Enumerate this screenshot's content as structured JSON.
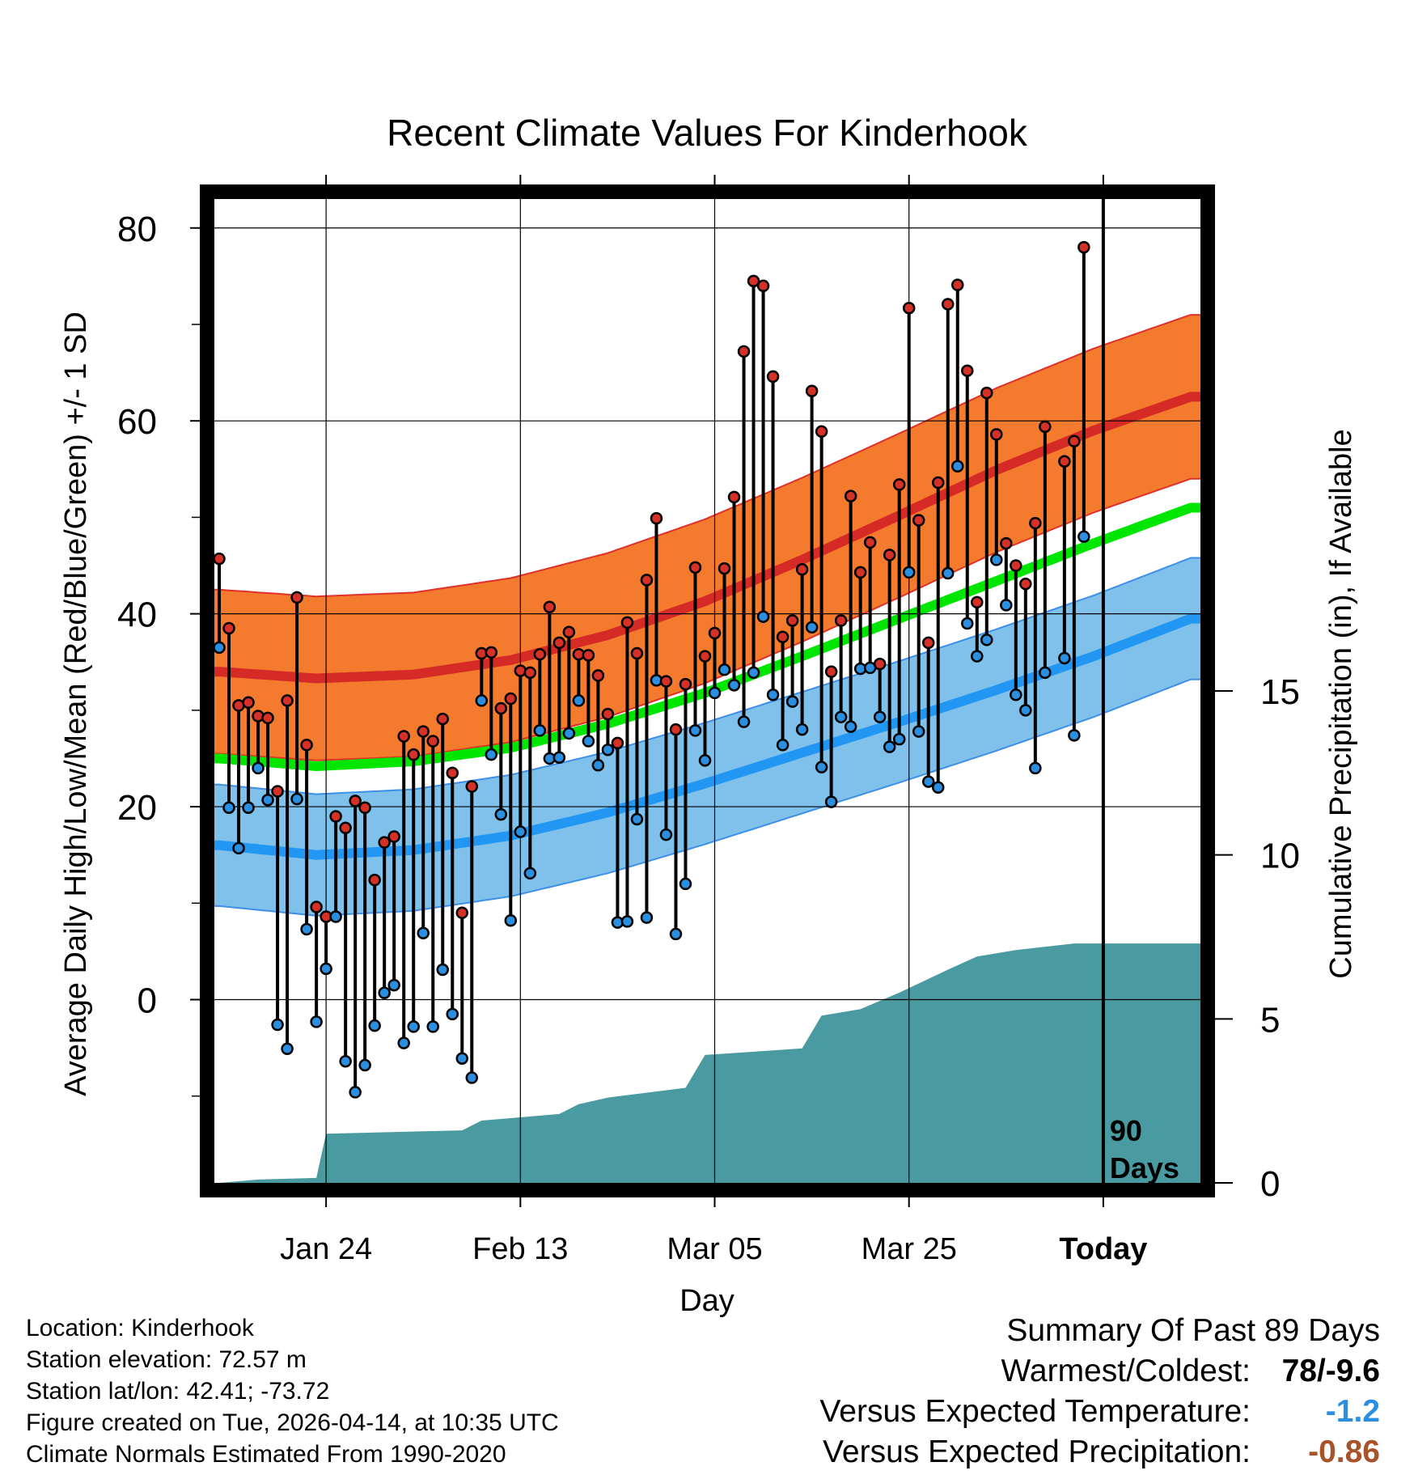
{
  "chart_data": {
    "type": "line",
    "title": "Recent Climate Values For Kinderhook",
    "xlabel": "Day",
    "ylabel_left": "Average Daily High/Low/Mean (Red/Blue/Green) +/- 1 SD",
    "ylabel_right": "Cumulative Precipitation (in), If Available",
    "xlim": [
      -0.5,
      101
    ],
    "ylim": [
      -19,
      83
    ],
    "precip_ylim": [
      0,
      30
    ],
    "x_ticks": [
      {
        "day": 11,
        "label": "Jan 24"
      },
      {
        "day": 31,
        "label": "Feb 13"
      },
      {
        "day": 51,
        "label": "Mar 05"
      },
      {
        "day": 71,
        "label": "Mar 25"
      },
      {
        "day": 91,
        "label": "Today"
      }
    ],
    "y_ticks": [
      0,
      20,
      40,
      60,
      80
    ],
    "y_minor_ticks": [
      -10,
      10,
      30,
      50,
      70
    ],
    "precip_ticks": [
      0,
      5,
      10,
      15
    ],
    "today_day": 91,
    "today_label": "90 Days",
    "normals": {
      "days": [
        0,
        10,
        20,
        30,
        40,
        50,
        60,
        70,
        80,
        90,
        100
      ],
      "high_mean": [
        34.0,
        33.3,
        33.7,
        35.2,
        37.8,
        41.3,
        45.6,
        50.2,
        54.9,
        59.0,
        62.5
      ],
      "high_sd": 8.5,
      "low_mean": [
        16.0,
        15.0,
        15.5,
        17.0,
        19.4,
        22.4,
        25.6,
        28.8,
        32.1,
        35.6,
        39.5
      ],
      "low_sd": 6.3,
      "avg_mean": [
        25.0,
        24.2,
        24.7,
        26.1,
        28.6,
        31.8,
        35.6,
        39.5,
        43.4,
        47.3,
        51.0
      ],
      "colors": {
        "high_band": "#f47a2e",
        "high_line": "#d62a27",
        "low_band": "#7fc1ea",
        "low_line": "#2196f3",
        "avg_line": "#00e600",
        "precip": "#4a9aa1"
      }
    },
    "daily": [
      {
        "day": 0,
        "high": 45.7,
        "low": 36.5
      },
      {
        "day": 1,
        "high": 38.5,
        "low": 19.9
      },
      {
        "day": 2,
        "high": 30.5,
        "low": 15.7
      },
      {
        "day": 3,
        "high": 30.8,
        "low": 19.9
      },
      {
        "day": 4,
        "high": 29.4,
        "low": 24.0
      },
      {
        "day": 5,
        "high": 29.2,
        "low": 20.7
      },
      {
        "day": 6,
        "high": 21.6,
        "low": -2.6
      },
      {
        "day": 7,
        "high": 31.0,
        "low": -5.1
      },
      {
        "day": 8,
        "high": 41.7,
        "low": 20.8
      },
      {
        "day": 9,
        "high": 26.4,
        "low": 7.3
      },
      {
        "day": 10,
        "high": 9.6,
        "low": -2.3
      },
      {
        "day": 11,
        "high": 8.6,
        "low": 3.2
      },
      {
        "day": 12,
        "high": 19.0,
        "low": 8.6
      },
      {
        "day": 13,
        "high": 17.8,
        "low": -6.4
      },
      {
        "day": 14,
        "high": 20.6,
        "low": -9.6
      },
      {
        "day": 15,
        "high": 19.9,
        "low": -6.8
      },
      {
        "day": 16,
        "high": 12.4,
        "low": -2.7
      },
      {
        "day": 17,
        "high": 16.3,
        "low": 0.7
      },
      {
        "day": 18,
        "high": 16.9,
        "low": 1.5
      },
      {
        "day": 19,
        "high": 27.3,
        "low": -4.5
      },
      {
        "day": 20,
        "high": 25.4,
        "low": -2.8
      },
      {
        "day": 21,
        "high": 27.8,
        "low": 6.9
      },
      {
        "day": 22,
        "high": 26.8,
        "low": -2.8
      },
      {
        "day": 23,
        "high": 29.1,
        "low": 3.1
      },
      {
        "day": 24,
        "high": 23.5,
        "low": -1.5
      },
      {
        "day": 25,
        "high": 9.0,
        "low": -6.1
      },
      {
        "day": 26,
        "high": 22.1,
        "low": -8.1
      },
      {
        "day": 27,
        "high": 35.9,
        "low": 31.0
      },
      {
        "day": 28,
        "high": 36.0,
        "low": 25.4
      },
      {
        "day": 29,
        "high": 30.2,
        "low": 19.2
      },
      {
        "day": 30,
        "high": 31.2,
        "low": 8.2
      },
      {
        "day": 31,
        "high": 34.1,
        "low": 17.4
      },
      {
        "day": 32,
        "high": 33.9,
        "low": 13.1
      },
      {
        "day": 33,
        "high": 35.8,
        "low": 27.9
      },
      {
        "day": 34,
        "high": 40.7,
        "low": 25.0
      },
      {
        "day": 35,
        "high": 37.0,
        "low": 25.1
      },
      {
        "day": 36,
        "high": 38.1,
        "low": 27.6
      },
      {
        "day": 37,
        "high": 35.8,
        "low": 31.0
      },
      {
        "day": 38,
        "high": 35.7,
        "low": 26.8
      },
      {
        "day": 39,
        "high": 33.6,
        "low": 24.3
      },
      {
        "day": 40,
        "high": 29.6,
        "low": 25.9
      },
      {
        "day": 41,
        "high": 26.6,
        "low": 8.0
      },
      {
        "day": 42,
        "high": 39.1,
        "low": 8.1
      },
      {
        "day": 43,
        "high": 35.9,
        "low": 18.7
      },
      {
        "day": 44,
        "high": 43.5,
        "low": 8.5
      },
      {
        "day": 45,
        "high": 49.9,
        "low": 33.1
      },
      {
        "day": 46,
        "high": 33.0,
        "low": 17.1
      },
      {
        "day": 47,
        "high": 28.0,
        "low": 6.8
      },
      {
        "day": 48,
        "high": 32.7,
        "low": 12.0
      },
      {
        "day": 49,
        "high": 44.8,
        "low": 27.9
      },
      {
        "day": 50,
        "high": 35.6,
        "low": 24.8
      },
      {
        "day": 51,
        "high": 38.0,
        "low": 31.8
      },
      {
        "day": 52,
        "high": 44.7,
        "low": 34.2
      },
      {
        "day": 53,
        "high": 52.1,
        "low": 32.6
      },
      {
        "day": 54,
        "high": 67.2,
        "low": 28.8
      },
      {
        "day": 55,
        "high": 74.5,
        "low": 33.9
      },
      {
        "day": 56,
        "high": 74.0,
        "low": 39.7
      },
      {
        "day": 57,
        "high": 64.6,
        "low": 31.6
      },
      {
        "day": 58,
        "high": 37.6,
        "low": 26.4
      },
      {
        "day": 59,
        "high": 39.3,
        "low": 30.9
      },
      {
        "day": 60,
        "high": 44.6,
        "low": 28.0
      },
      {
        "day": 61,
        "high": 63.1,
        "low": 38.6
      },
      {
        "day": 62,
        "high": 58.9,
        "low": 24.1
      },
      {
        "day": 63,
        "high": 34.0,
        "low": 20.5
      },
      {
        "day": 64,
        "high": 39.3,
        "low": 29.3
      },
      {
        "day": 65,
        "high": 52.2,
        "low": 28.3
      },
      {
        "day": 66,
        "high": 44.3,
        "low": 34.3
      },
      {
        "day": 67,
        "high": 47.4,
        "low": 34.4
      },
      {
        "day": 68,
        "high": 34.8,
        "low": 29.3
      },
      {
        "day": 69,
        "high": 46.1,
        "low": 26.2
      },
      {
        "day": 70,
        "high": 53.4,
        "low": 27.0
      },
      {
        "day": 71,
        "high": 71.7,
        "low": 44.3
      },
      {
        "day": 72,
        "high": 49.7,
        "low": 27.8
      },
      {
        "day": 73,
        "high": 37.0,
        "low": 22.6
      },
      {
        "day": 74,
        "high": 53.6,
        "low": 22.0
      },
      {
        "day": 75,
        "high": 72.1,
        "low": 44.2
      },
      {
        "day": 76,
        "high": 74.1,
        "low": 55.3
      },
      {
        "day": 77,
        "high": 65.2,
        "low": 39.0
      },
      {
        "day": 78,
        "high": 41.2,
        "low": 35.6
      },
      {
        "day": 79,
        "high": 62.9,
        "low": 37.3
      },
      {
        "day": 80,
        "high": 58.6,
        "low": 45.6
      },
      {
        "day": 81,
        "high": 47.3,
        "low": 40.9
      },
      {
        "day": 82,
        "high": 45.0,
        "low": 31.6
      },
      {
        "day": 83,
        "high": 43.1,
        "low": 30.0
      },
      {
        "day": 84,
        "high": 49.4,
        "low": 24.0
      },
      {
        "day": 85,
        "high": 59.4,
        "low": 33.9
      },
      {
        "day": 87,
        "high": 55.8,
        "low": 35.4
      },
      {
        "day": 88,
        "high": 57.9,
        "low": 27.4
      },
      {
        "day": 89,
        "high": 78.0,
        "low": 48.0
      }
    ],
    "precip_cumulative": [
      {
        "day": 0,
        "value": 0.0
      },
      {
        "day": 4,
        "value": 0.1
      },
      {
        "day": 10,
        "value": 0.15
      },
      {
        "day": 11,
        "value": 1.5
      },
      {
        "day": 25,
        "value": 1.6
      },
      {
        "day": 27,
        "value": 1.9
      },
      {
        "day": 35,
        "value": 2.1
      },
      {
        "day": 37,
        "value": 2.4
      },
      {
        "day": 40,
        "value": 2.6
      },
      {
        "day": 48,
        "value": 2.9
      },
      {
        "day": 50,
        "value": 3.9
      },
      {
        "day": 55,
        "value": 4.0
      },
      {
        "day": 60,
        "value": 4.1
      },
      {
        "day": 62,
        "value": 5.1
      },
      {
        "day": 66,
        "value": 5.3
      },
      {
        "day": 70,
        "value": 5.8
      },
      {
        "day": 75,
        "value": 6.5
      },
      {
        "day": 78,
        "value": 6.9
      },
      {
        "day": 82,
        "value": 7.1
      },
      {
        "day": 88,
        "value": 7.3
      },
      {
        "day": 101,
        "value": 7.3
      }
    ]
  },
  "metadata": {
    "location": "Location: Kinderhook",
    "elevation": "Station elevation: 72.57 m",
    "latlon": "Station lat/lon: 42.41; -73.72",
    "created": "Figure created on Tue, 2026-04-14, at 10:35 UTC",
    "normals": "Climate Normals Estimated From 1990-2020"
  },
  "summary": {
    "title": "Summary Of Past 89 Days",
    "warmest_coldest_label": "Warmest/Coldest:",
    "warmest_coldest_value": "78/-9.6",
    "temp_label": "Versus Expected Temperature:",
    "temp_value": "-1.2",
    "temp_color": "#2a8fe0",
    "precip_label": "Versus Expected Precipitation:",
    "precip_value": "-0.86",
    "precip_color": "#a8532a"
  }
}
